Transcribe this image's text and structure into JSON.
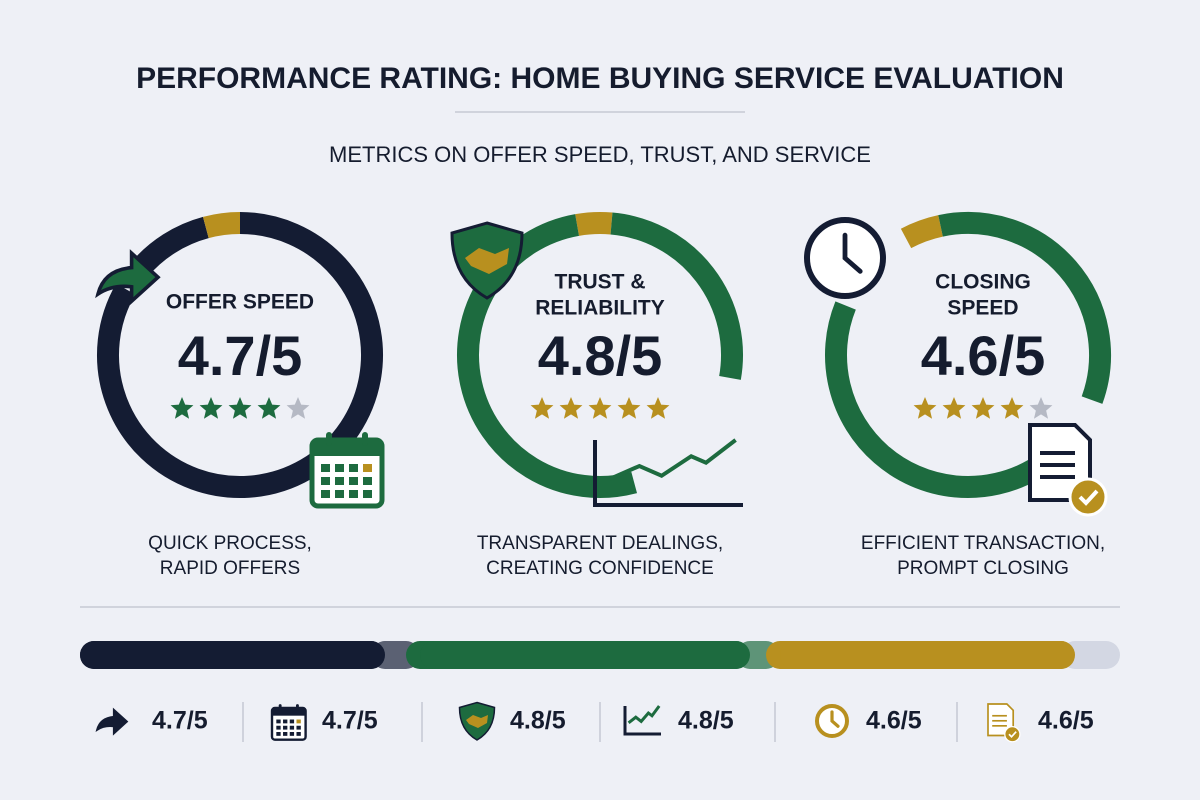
{
  "header": {
    "title": "PERFORMANCE RATING: HOME BUYING SERVICE EVALUATION",
    "subtitle": "METRICS ON OFFER SPEED, TRUST, AND SERVICE"
  },
  "cards": [
    {
      "label": [
        "OFFER SPEED"
      ],
      "rating": "4.7/5",
      "description": [
        "QUICK PROCESS,",
        "RAPID OFFERS"
      ]
    },
    {
      "label": [
        "TRUST &",
        "RELIABILITY"
      ],
      "rating": "4.8/5",
      "description": [
        "TRANSPARENT DEALINGS,",
        "CREATING CONFIDENCE"
      ]
    },
    {
      "label": [
        "CLOSING",
        "SPEED"
      ],
      "rating": "4.6/5",
      "description": [
        "EFFICIENT TRANSACTION,",
        "PROMPT CLOSING"
      ]
    }
  ],
  "summary": [
    "4.7/5",
    "4.7/5",
    "4.8/5",
    "4.8/5",
    "4.6/5",
    "4.6/5"
  ]
}
